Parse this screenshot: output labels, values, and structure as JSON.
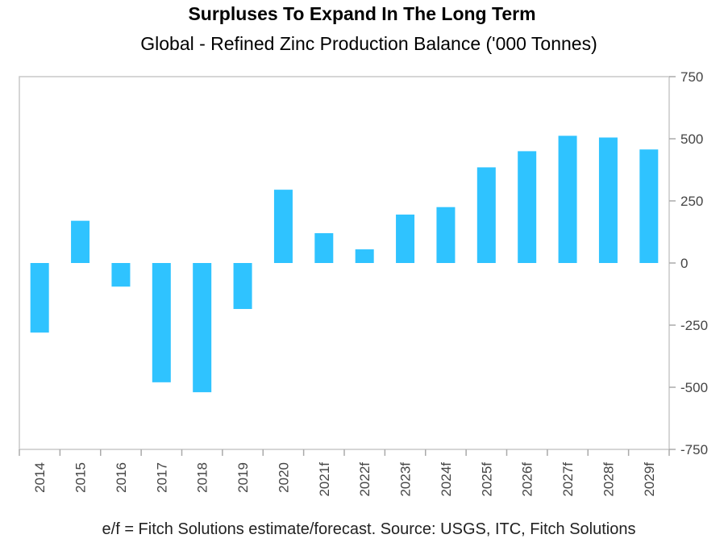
{
  "header": {
    "title": "Surpluses To Expand In The Long Term",
    "subtitle": "Global - Refined Zinc Production Balance ('000 Tonnes)"
  },
  "footer": {
    "note": "e/f = Fitch Solutions estimate/forecast. Source: USGS, ITC, Fitch Solutions"
  },
  "colors": {
    "bar": "#2fc3ff",
    "axis": "#aaaaaa",
    "frame": "#c8c8c8"
  },
  "chart_data": {
    "type": "bar",
    "title": "Surpluses To Expand In The Long Term",
    "subtitle": "Global - Refined Zinc Production Balance ('000 Tonnes)",
    "xlabel": "",
    "ylabel": "",
    "ylim": [
      -750,
      750
    ],
    "yticks": [
      750,
      500,
      250,
      0,
      -250,
      -500,
      -750
    ],
    "ytick_labels": [
      "750",
      "500",
      "250",
      "0",
      "-250",
      "-500",
      "-750"
    ],
    "y_axis_side": "right",
    "grid": false,
    "categories": [
      "2014",
      "2015",
      "2016",
      "2017",
      "2018",
      "2019",
      "2020",
      "2021f",
      "2022f",
      "2023f",
      "2024f",
      "2025f",
      "2026f",
      "2027f",
      "2028f",
      "2029f"
    ],
    "values": [
      -280,
      170,
      -95,
      -480,
      -520,
      -185,
      295,
      120,
      55,
      195,
      225,
      385,
      450,
      512,
      505,
      457
    ]
  }
}
